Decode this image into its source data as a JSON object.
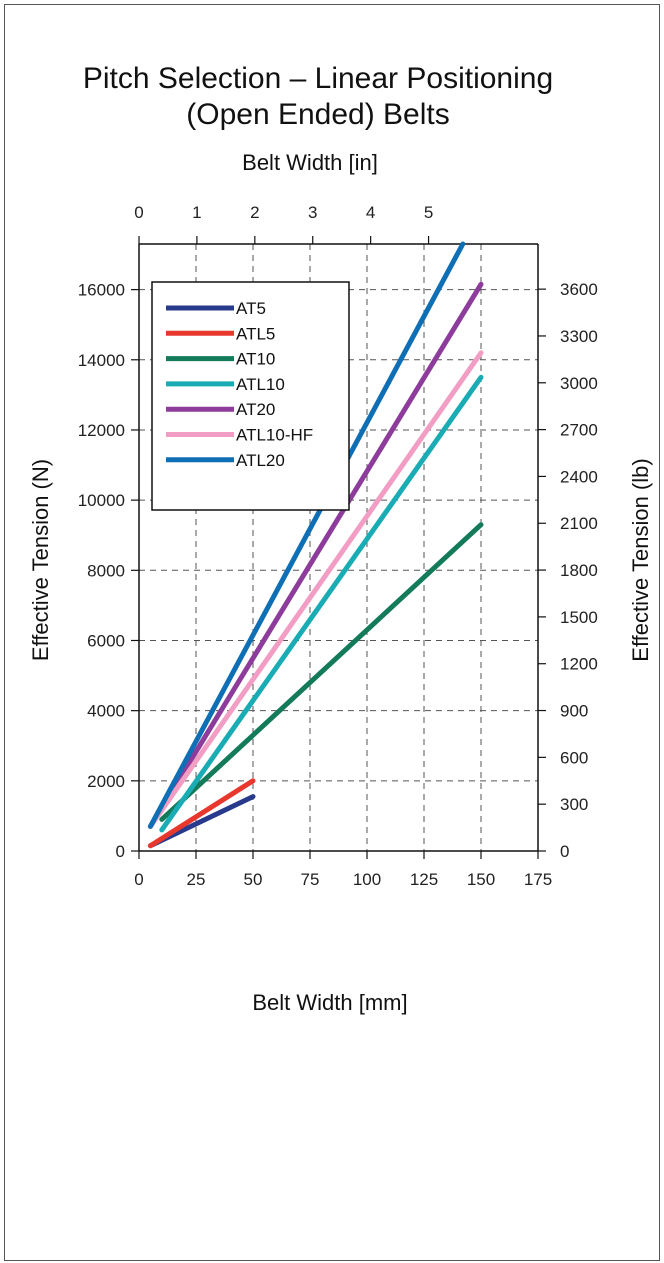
{
  "chart_data": {
    "type": "line",
    "title_lines": [
      "Pitch Selection – Linear Positioning",
      "(Open Ended) Belts"
    ],
    "top_xlabel": "Belt Width [in]",
    "xlabel": "Belt Width [mm]",
    "ylabel_left": "Effective Tension (N)",
    "ylabel_right": "Effective Tension (lb)",
    "xlim": [
      0,
      175
    ],
    "ylim": [
      0,
      17300
    ],
    "x_ticks": [
      "0",
      "25",
      "50",
      "75",
      "100",
      "125",
      "150",
      "175"
    ],
    "x_tick_values": [
      0,
      25,
      50,
      75,
      100,
      125,
      150,
      175
    ],
    "top_ticks": [
      "0",
      "1",
      "2",
      "3",
      "4",
      "5"
    ],
    "top_tick_values_in": [
      0,
      1,
      2,
      3,
      4,
      5
    ],
    "y_ticks_left": [
      "0",
      "2000",
      "4000",
      "6000",
      "8000",
      "10000",
      "12000",
      "14000",
      "16000"
    ],
    "y_tick_values_left": [
      0,
      2000,
      4000,
      6000,
      8000,
      10000,
      12000,
      14000,
      16000
    ],
    "y_ticks_right": [
      "0",
      "300",
      "600",
      "900",
      "1200",
      "1500",
      "1800",
      "2100",
      "2400",
      "2700",
      "3000",
      "3300",
      "3600"
    ],
    "y_tick_values_right_lb": [
      0,
      300,
      600,
      900,
      1200,
      1500,
      1800,
      2100,
      2400,
      2700,
      3000,
      3300,
      3600
    ],
    "grid": true,
    "legend_position": "top-left",
    "series": [
      {
        "name": "AT5",
        "color": "#283a8c",
        "x": [
          5,
          50
        ],
        "y": [
          150,
          1550
        ]
      },
      {
        "name": "ATL5",
        "color": "#e8382e",
        "x": [
          5,
          50
        ],
        "y": [
          150,
          2000
        ]
      },
      {
        "name": "AT10",
        "color": "#137a5a",
        "x": [
          10,
          150
        ],
        "y": [
          900,
          9300
        ]
      },
      {
        "name": "ATL10",
        "color": "#1aacb4",
        "x": [
          10,
          150
        ],
        "y": [
          600,
          13500
        ]
      },
      {
        "name": "AT20",
        "color": "#8e3c9c",
        "x": [
          5,
          150
        ],
        "y": [
          700,
          16150
        ]
      },
      {
        "name": "ATL10-HF",
        "color": "#f29ec4",
        "x": [
          5,
          150
        ],
        "y": [
          700,
          14200
        ]
      },
      {
        "name": "ATL20",
        "color": "#0f6fb5",
        "x": [
          5,
          142
        ],
        "y": [
          700,
          17300
        ]
      }
    ]
  }
}
